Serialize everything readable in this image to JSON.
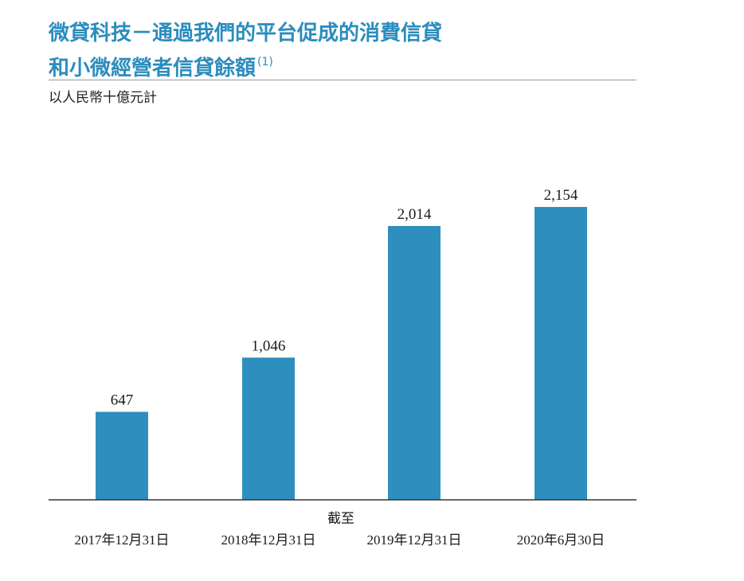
{
  "title_line1": "微貸科技－通過我們的平台促成的消費信貸",
  "title_line2": "和小微經營者信貸餘額",
  "title_footnote": "(1)",
  "unit_label": "以人民幣十億元計",
  "colors": {
    "title": "#2b8dbd",
    "bar": "#2e8fbe",
    "axis": "#333333"
  },
  "chart_data": {
    "type": "bar",
    "title": "微貸科技－通過我們的平台促成的消費信貸和小微經營者信貸餘額",
    "ylabel": "以人民幣十億元計",
    "xlabel": "截至",
    "categories": [
      "2017年12月31日",
      "2018年12月31日",
      "2019年12月31日",
      "2020年6月30日"
    ],
    "values": [
      647,
      1046,
      2014,
      2154
    ],
    "data_labels": [
      "647",
      "1,046",
      "2,014",
      "2,154"
    ],
    "ylim": [
      0,
      2400
    ],
    "grid": false
  }
}
